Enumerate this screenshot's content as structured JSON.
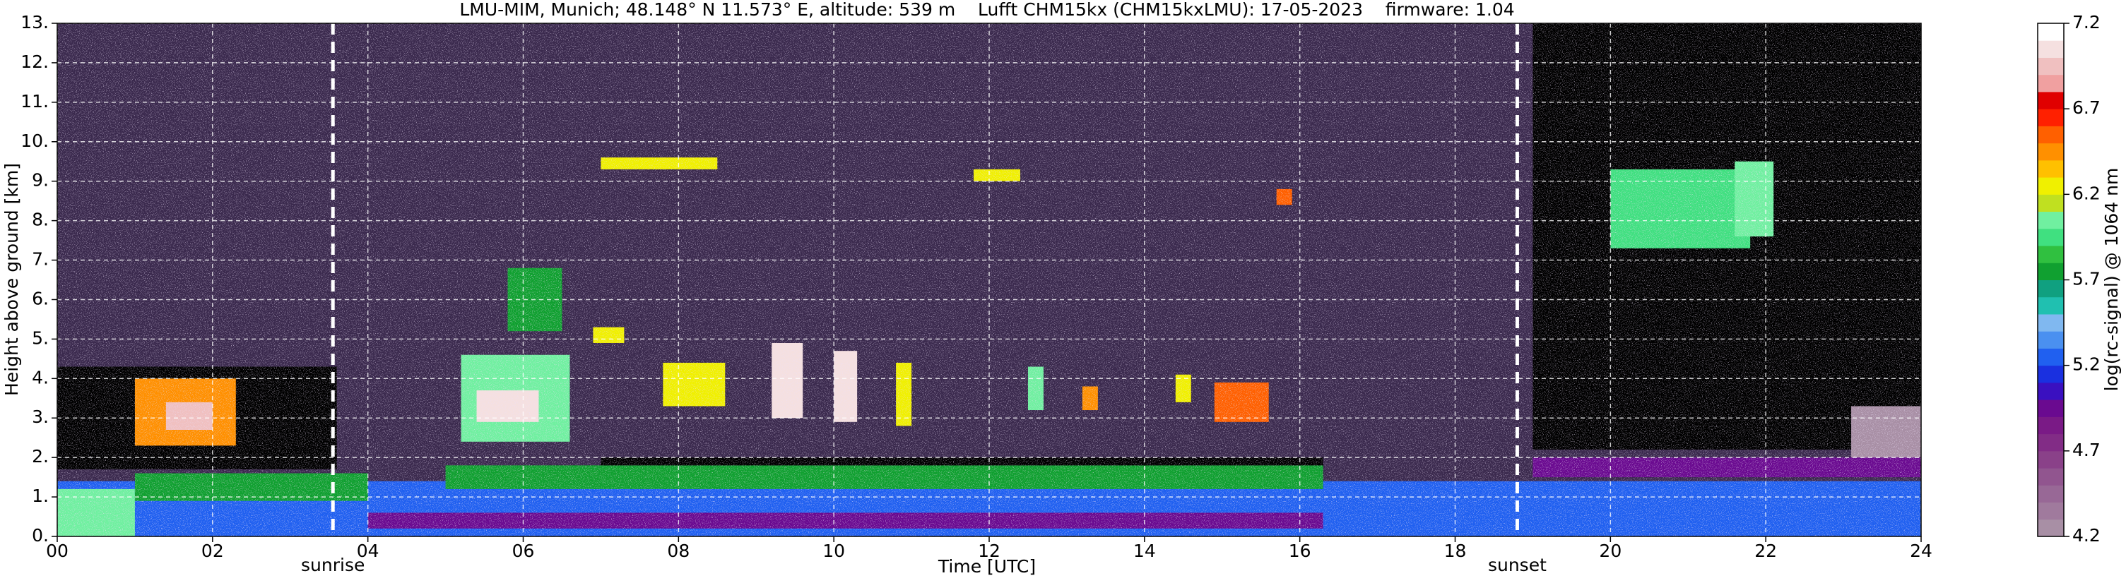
{
  "chart_data": {
    "type": "heatmap",
    "title": "LMU-MIM, Munich; 48.148° N 11.573° E, altitude: 539 m    Lufft CHM15kx (CHM15kxLMU): 17-05-2023    firmware: 1.04",
    "xlabel": "Time [UTC]",
    "ylabel": "Height above ground [km]",
    "xlim": [
      0,
      24
    ],
    "xticks": [
      {
        "value": 0,
        "label": "00"
      },
      {
        "value": 2,
        "label": "02"
      },
      {
        "value": 4,
        "label": "04"
      },
      {
        "value": 6,
        "label": "06"
      },
      {
        "value": 8,
        "label": "08"
      },
      {
        "value": 10,
        "label": "10"
      },
      {
        "value": 12,
        "label": "12"
      },
      {
        "value": 14,
        "label": "14"
      },
      {
        "value": 16,
        "label": "16"
      },
      {
        "value": 18,
        "label": "18"
      },
      {
        "value": 20,
        "label": "20"
      },
      {
        "value": 22,
        "label": "22"
      },
      {
        "value": 24,
        "label": "24"
      }
    ],
    "ylim": [
      0,
      13
    ],
    "yticks": [
      {
        "value": 0,
        "label": "0."
      },
      {
        "value": 1,
        "label": "1."
      },
      {
        "value": 2,
        "label": "2."
      },
      {
        "value": 3,
        "label": "3."
      },
      {
        "value": 4,
        "label": "4."
      },
      {
        "value": 5,
        "label": "5."
      },
      {
        "value": 6,
        "label": "6."
      },
      {
        "value": 7,
        "label": "7."
      },
      {
        "value": 8,
        "label": "8."
      },
      {
        "value": 9,
        "label": "9."
      },
      {
        "value": 10,
        "label": "10."
      },
      {
        "value": 11,
        "label": "11."
      },
      {
        "value": 12,
        "label": "12."
      },
      {
        "value": 13,
        "label": "13."
      }
    ],
    "grid": true,
    "annotations": [
      {
        "text": "sunrise",
        "x": 3.55
      },
      {
        "text": "sunset",
        "x": 18.8
      }
    ],
    "colorbar": {
      "label": "log(rc-signal) @ 1064 nm",
      "lim": [
        4.2,
        7.2
      ],
      "ticks": [
        4.2,
        4.7,
        5.2,
        5.7,
        6.2,
        6.7,
        7.2
      ],
      "colors": [
        "#a88fa5",
        "#a07a9d",
        "#986896",
        "#91558f",
        "#8a4189",
        "#822c86",
        "#7a1a86",
        "#6a0a90",
        "#3a10c0",
        "#1a30e0",
        "#2060f0",
        "#4a90f0",
        "#80b8f0",
        "#20c0b0",
        "#10a080",
        "#10a030",
        "#30c040",
        "#40e080",
        "#70f0a0",
        "#c0e020",
        "#f0f000",
        "#ffc000",
        "#ff9000",
        "#ff6000",
        "#ff2000",
        "#e00000",
        "#f0a0a0",
        "#f0c0c0",
        "#f5e0e0",
        "#ffffff"
      ]
    },
    "features": [
      {
        "t": [
          0,
          3.6
        ],
        "h": [
          1.7,
          4.3
        ],
        "value": 4.0
      },
      {
        "t": [
          19,
          24
        ],
        "h": [
          2.2,
          13
        ],
        "value": 4.0
      },
      {
        "t": [
          0,
          24
        ],
        "h": [
          0,
          1.4
        ],
        "value": 5.2
      },
      {
        "t": [
          4,
          16.3
        ],
        "h": [
          0.2,
          0.6
        ],
        "value": 4.9
      },
      {
        "t": [
          16.3,
          19
        ],
        "h": [
          0,
          1.3
        ],
        "value": 5.3
      },
      {
        "t": [
          0,
          1.0
        ],
        "h": [
          0,
          1.2
        ],
        "value": 6.0
      },
      {
        "t": [
          1,
          4
        ],
        "h": [
          0.9,
          1.6
        ],
        "value": 5.8
      },
      {
        "t": [
          5,
          16.3
        ],
        "h": [
          1.2,
          1.8
        ],
        "value": 5.8
      },
      {
        "t": [
          7,
          16.3
        ],
        "h": [
          1.8,
          2.0
        ],
        "value": 4.0
      },
      {
        "t": [
          19,
          24
        ],
        "h": [
          1.5,
          2.0
        ],
        "value": 4.9
      },
      {
        "t": [
          23.1,
          24
        ],
        "h": [
          2.0,
          3.3
        ],
        "value": 4.3
      },
      {
        "t": [
          1,
          2.3
        ],
        "h": [
          2.3,
          4.0
        ],
        "value": 6.4
      },
      {
        "t": [
          1.4,
          2.0
        ],
        "h": [
          2.7,
          3.4
        ],
        "value": 7.0
      },
      {
        "t": [
          5.2,
          6.6
        ],
        "h": [
          2.4,
          4.6
        ],
        "value": 6.1
      },
      {
        "t": [
          5.4,
          6.2
        ],
        "h": [
          2.9,
          3.7
        ],
        "value": 7.1
      },
      {
        "t": [
          5.8,
          6.5
        ],
        "h": [
          5.2,
          6.8
        ],
        "value": 5.8
      },
      {
        "t": [
          6.9,
          7.3
        ],
        "h": [
          4.9,
          5.3
        ],
        "value": 6.3
      },
      {
        "t": [
          7.8,
          8.6
        ],
        "h": [
          3.3,
          4.4
        ],
        "value": 6.2
      },
      {
        "t": [
          9.2,
          9.6
        ],
        "h": [
          3.0,
          4.9
        ],
        "value": 7.1
      },
      {
        "t": [
          10.0,
          10.3
        ],
        "h": [
          2.9,
          4.7
        ],
        "value": 7.1
      },
      {
        "t": [
          10.8,
          11.0
        ],
        "h": [
          2.8,
          4.4
        ],
        "value": 6.3
      },
      {
        "t": [
          12.5,
          12.7
        ],
        "h": [
          3.2,
          4.3
        ],
        "value": 6.0
      },
      {
        "t": [
          13.2,
          13.4
        ],
        "h": [
          3.2,
          3.8
        ],
        "value": 6.4
      },
      {
        "t": [
          14.4,
          14.6
        ],
        "h": [
          3.4,
          4.1
        ],
        "value": 6.3
      },
      {
        "t": [
          14.9,
          15.6
        ],
        "h": [
          2.9,
          3.9
        ],
        "value": 6.5
      },
      {
        "t": [
          7.0,
          8.5
        ],
        "h": [
          9.3,
          9.6
        ],
        "value": 6.3
      },
      {
        "t": [
          11.8,
          12.4
        ],
        "h": [
          9.0,
          9.3
        ],
        "value": 6.2
      },
      {
        "t": [
          15.7,
          15.9
        ],
        "h": [
          8.4,
          8.8
        ],
        "value": 6.6
      },
      {
        "t": [
          20.0,
          21.8
        ],
        "h": [
          7.3,
          9.3
        ],
        "value": 5.9
      },
      {
        "t": [
          21.6,
          22.1
        ],
        "h": [
          7.6,
          9.5
        ],
        "value": 6.0
      }
    ]
  }
}
